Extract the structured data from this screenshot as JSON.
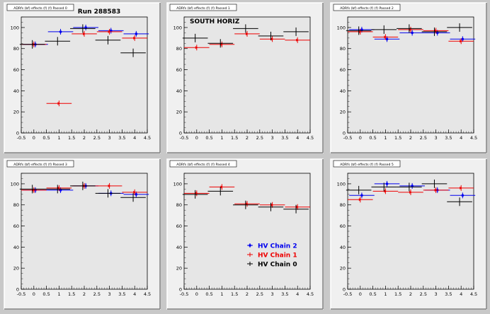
{
  "canvas_title": "Run 288583",
  "panel_titles": [
    "ADRfs (bf) effects (f) (f) Passed 0",
    "ADRfs (bf) effects (f) (f) Passed 1",
    "ADRfs (bf) effects (f) (f) Passed 2",
    "ADRfs (bf) effects (f) (f) Passed 3",
    "ADRfs (bf) effects (f) (f) Passed 4",
    "ADRfs (bf) effects (f) (f) Passed 5"
  ],
  "colors": {
    "chain2": "#0000ee",
    "chain1": "#ee0000",
    "chain0": "#000000",
    "frame_bg": "#f0f0f0",
    "pad_bg": "#e6e6e6"
  },
  "chart_data": [
    {
      "type": "scatter",
      "title": "",
      "annotation": "Run 288583",
      "xlim": [
        -0.5,
        4.5
      ],
      "ylim": [
        0,
        110
      ],
      "xticks": [
        "-0.5",
        "0",
        "0.5",
        "1",
        "1.5",
        "2",
        "2.5",
        "3",
        "3.5",
        "4",
        "4.5"
      ],
      "yticks": [
        "0",
        "20",
        "40",
        "60",
        "80",
        "100"
      ],
      "x": [
        0,
        1,
        2,
        3,
        4
      ],
      "series": [
        {
          "name": "HV Chain 2",
          "values": [
            84,
            96,
            100,
            97,
            94
          ]
        },
        {
          "name": "HV Chain 1",
          "values": [
            84,
            28,
            94,
            96,
            90
          ]
        },
        {
          "name": "HV Chain 0",
          "values": [
            84,
            87,
            99,
            88,
            76
          ]
        }
      ]
    },
    {
      "type": "scatter",
      "title": "",
      "annotation": "SOUTH HORIZ",
      "xlim": [
        -0.5,
        4.5
      ],
      "ylim": [
        0,
        110
      ],
      "xticks": [
        "-0.5",
        "0",
        "0.5",
        "1",
        "1.5",
        "2",
        "2.5",
        "3",
        "3.5",
        "4",
        "4.5"
      ],
      "yticks": [
        "0",
        "20",
        "40",
        "60",
        "80",
        "100"
      ],
      "x": [
        0,
        1,
        2,
        3,
        4
      ],
      "series": [
        {
          "name": "HV Chain 2",
          "values": [
            null,
            null,
            null,
            null,
            null
          ]
        },
        {
          "name": "HV Chain 1",
          "values": [
            81,
            84,
            94,
            89,
            88
          ]
        },
        {
          "name": "HV Chain 0",
          "values": [
            90,
            85,
            99,
            92,
            96
          ]
        }
      ]
    },
    {
      "type": "scatter",
      "title": "",
      "annotation": "",
      "xlim": [
        -0.5,
        4.5
      ],
      "ylim": [
        0,
        110
      ],
      "xticks": [
        "-0.5",
        "0",
        "0.5",
        "1",
        "1.5",
        "2",
        "2.5",
        "3",
        "3.5",
        "4",
        "4.5"
      ],
      "yticks": [
        "0",
        "20",
        "40",
        "60",
        "80",
        "100"
      ],
      "x": [
        0,
        1,
        2,
        3,
        4
      ],
      "series": [
        {
          "name": "HV Chain 2",
          "values": [
            98,
            89,
            95,
            95,
            89
          ]
        },
        {
          "name": "HV Chain 1",
          "values": [
            96,
            91,
            98,
            97,
            87
          ]
        },
        {
          "name": "HV Chain 0",
          "values": [
            97,
            98,
            99,
            96,
            100
          ]
        }
      ]
    },
    {
      "type": "scatter",
      "title": "",
      "annotation": "",
      "xlim": [
        -0.5,
        4.5
      ],
      "ylim": [
        0,
        110
      ],
      "xticks": [
        "-0.5",
        "0",
        "0.5",
        "1",
        "1.5",
        "2",
        "2.5",
        "3",
        "3.5",
        "4",
        "4.5"
      ],
      "yticks": [
        "0",
        "20",
        "40",
        "60",
        "80",
        "100"
      ],
      "x": [
        0,
        1,
        2,
        3,
        4
      ],
      "series": [
        {
          "name": "HV Chain 2",
          "values": [
            94,
            94,
            98,
            91,
            90
          ]
        },
        {
          "name": "HV Chain 1",
          "values": [
            94,
            96,
            98,
            98,
            92
          ]
        },
        {
          "name": "HV Chain 0",
          "values": [
            95,
            95,
            98,
            91,
            87
          ]
        }
      ]
    },
    {
      "type": "scatter",
      "title": "",
      "annotation": "",
      "xlim": [
        -0.5,
        4.5
      ],
      "ylim": [
        0,
        110
      ],
      "xticks": [
        "-0.5",
        "0",
        "0.5",
        "1",
        "1.5",
        "2",
        "2.5",
        "3",
        "3.5",
        "4",
        "4.5"
      ],
      "yticks": [
        "0",
        "20",
        "40",
        "60",
        "80",
        "100"
      ],
      "x": [
        0,
        1,
        2,
        3,
        4
      ],
      "series": [
        {
          "name": "HV Chain 2",
          "values": [
            null,
            null,
            null,
            null,
            null
          ]
        },
        {
          "name": "HV Chain 1",
          "values": [
            91,
            97,
            81,
            80,
            78
          ]
        },
        {
          "name": "HV Chain 0",
          "values": [
            90,
            93,
            80,
            78,
            76
          ]
        }
      ],
      "legend": [
        "HV Chain 2",
        "HV Chain 1",
        "HV Chain 0"
      ]
    },
    {
      "type": "scatter",
      "title": "",
      "annotation": "",
      "xlim": [
        -0.5,
        4.5
      ],
      "ylim": [
        0,
        110
      ],
      "xticks": [
        "-0.5",
        "0",
        "0.5",
        "1",
        "1.5",
        "2",
        "2.5",
        "3",
        "3.5",
        "4",
        "4.5"
      ],
      "yticks": [
        "0",
        "20",
        "40",
        "60",
        "80",
        "100"
      ],
      "x": [
        0,
        1,
        2,
        3,
        4
      ],
      "series": [
        {
          "name": "HV Chain 2",
          "values": [
            89,
            100,
            98,
            94,
            89
          ]
        },
        {
          "name": "HV Chain 1",
          "values": [
            85,
            93,
            92,
            94,
            96
          ]
        },
        {
          "name": "HV Chain 0",
          "values": [
            94,
            97,
            97,
            100,
            83
          ]
        }
      ]
    }
  ]
}
